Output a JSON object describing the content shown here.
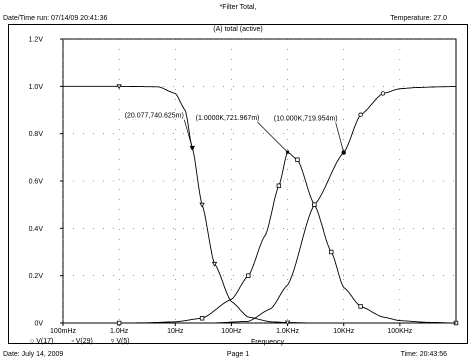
{
  "header": {
    "title": "*Filter Total,",
    "run_info": "Date/Time run: 07/14/09 20:41:36",
    "temperature": "Temperature: 27.0",
    "subtitle": "(A) total (active)"
  },
  "footer": {
    "date": "Date: July 14, 2009",
    "page": "Page 1",
    "time": "Time: 20:43:56"
  },
  "chart_data": {
    "type": "line",
    "title": "(A) total (active)",
    "xlabel": "Frequency",
    "ylabel": "",
    "xscale": "log",
    "xlim": [
      0.1,
      1000000
    ],
    "ylim": [
      0,
      1.2
    ],
    "grid": true,
    "x_ticks": [
      {
        "value": 0.1,
        "label": "100mHz"
      },
      {
        "value": 1,
        "label": "1.0Hz"
      },
      {
        "value": 10,
        "label": "10Hz"
      },
      {
        "value": 100,
        "label": "100Hz"
      },
      {
        "value": 1000,
        "label": "1.0KHz"
      },
      {
        "value": 10000,
        "label": "10KHz"
      },
      {
        "value": 100000,
        "label": "100KHz"
      }
    ],
    "y_ticks": [
      {
        "value": 0,
        "label": "0V"
      },
      {
        "value": 0.2,
        "label": "0.2V"
      },
      {
        "value": 0.4,
        "label": "0.4V"
      },
      {
        "value": 0.6,
        "label": "0.6V"
      },
      {
        "value": 0.8,
        "label": "0.8V"
      },
      {
        "value": 1.0,
        "label": "1.0V"
      },
      {
        "value": 1.2,
        "label": "1.2V"
      }
    ],
    "series": [
      {
        "name": "V(17)",
        "marker": "circle",
        "points": [
          [
            0.1,
            0.0
          ],
          [
            1,
            0.0
          ],
          [
            10,
            0.0
          ],
          [
            50,
            0.0005
          ],
          [
            200,
            0.007
          ],
          [
            500,
            0.06
          ],
          [
            1000,
            0.16
          ],
          [
            3000,
            0.5
          ],
          [
            10000,
            0.72
          ],
          [
            20000,
            0.88
          ],
          [
            50000,
            0.97
          ],
          [
            100000,
            0.99
          ],
          [
            200000,
            0.995
          ],
          [
            500000,
            0.998
          ],
          [
            1000000,
            0.999
          ]
        ]
      },
      {
        "name": "V(29)",
        "marker": "square",
        "points": [
          [
            0.1,
            0.0
          ],
          [
            1,
            0.0
          ],
          [
            3,
            0.001
          ],
          [
            10,
            0.005
          ],
          [
            30,
            0.02
          ],
          [
            100,
            0.1
          ],
          [
            200,
            0.2
          ],
          [
            400,
            0.37
          ],
          [
            700,
            0.58
          ],
          [
            1000,
            0.722
          ],
          [
            1500,
            0.69
          ],
          [
            3000,
            0.5
          ],
          [
            6000,
            0.3
          ],
          [
            10000,
            0.15
          ],
          [
            20000,
            0.07
          ],
          [
            50000,
            0.025
          ],
          [
            100000,
            0.01
          ],
          [
            300000,
            0.003
          ],
          [
            1000000,
            0.0
          ]
        ]
      },
      {
        "name": "V(5)",
        "marker": "triangle",
        "points": [
          [
            0.1,
            1.0
          ],
          [
            1,
            1.0
          ],
          [
            5,
            0.998
          ],
          [
            10,
            0.97
          ],
          [
            15,
            0.9
          ],
          [
            20.077,
            0.7406
          ],
          [
            30,
            0.5
          ],
          [
            50,
            0.25
          ],
          [
            100,
            0.09
          ],
          [
            200,
            0.025
          ],
          [
            500,
            0.005
          ],
          [
            1000,
            0.002
          ],
          [
            3000,
            0.0
          ],
          [
            1000000,
            0.0
          ]
        ]
      }
    ],
    "annotations": [
      {
        "label": "(20.077,740.625m)",
        "x": 20.077,
        "y": 0.7406
      },
      {
        "label": "(1.0000K,721.967m)",
        "x": 1000,
        "y": 0.722
      },
      {
        "label": "(10.000K,719.954m)",
        "x": 10000,
        "y": 0.72
      }
    ]
  }
}
